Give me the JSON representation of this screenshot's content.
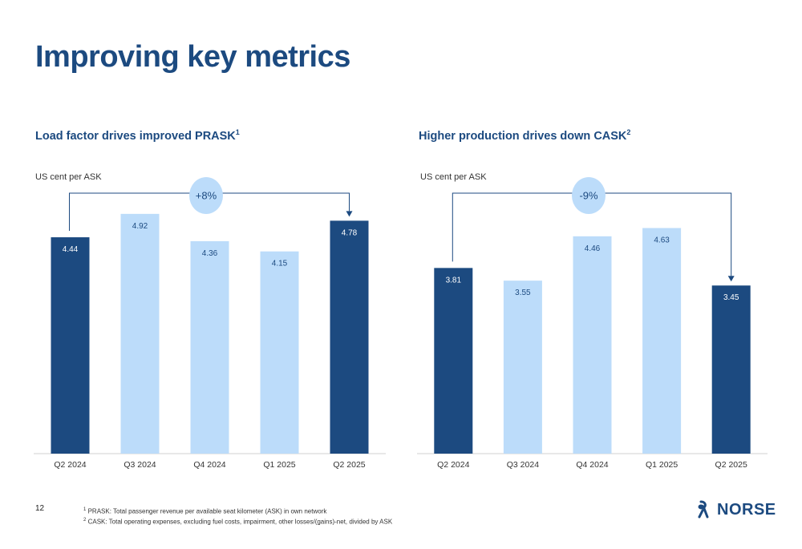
{
  "title": "Improving key metrics",
  "page_number": "12",
  "footnotes": [
    {
      "marker": "1",
      "text": "PRASK: Total passenger revenue per available seat kilometer (ASK) in own network"
    },
    {
      "marker": "2",
      "text": "CASK: Total operating expenses, excluding fuel costs, impairment, other losses/(gains)-net, divided by ASK"
    }
  ],
  "logo": {
    "text": "NORSE"
  },
  "colors": {
    "dark": "#1c4a80",
    "light": "#bcdcfa",
    "bubble": "#bcdcfa"
  },
  "chart_data": [
    {
      "type": "bar",
      "title": "Load factor drives improved PRASK",
      "title_superscript": "1",
      "ylabel": "US cent per ASK",
      "categories": [
        "Q2 2024",
        "Q3 2024",
        "Q4 2024",
        "Q1 2025",
        "Q2 2025"
      ],
      "values": [
        4.44,
        4.92,
        4.36,
        4.15,
        4.78
      ],
      "labels": [
        "4.44",
        "4.92",
        "4.36",
        "4.15",
        "4.78"
      ],
      "highlight": [
        true,
        false,
        false,
        false,
        true
      ],
      "comparison": {
        "label": "+8%",
        "from": "Q2 2024",
        "to": "Q2 2025"
      },
      "grid": false
    },
    {
      "type": "bar",
      "title": "Higher production drives down CASK",
      "title_superscript": "2",
      "ylabel": "US cent per ASK",
      "categories": [
        "Q2 2024",
        "Q3 2024",
        "Q4 2024",
        "Q1 2025",
        "Q2 2025"
      ],
      "values": [
        3.81,
        3.55,
        4.46,
        4.63,
        3.45
      ],
      "labels": [
        "3.81",
        "3.55",
        "4.46",
        "4.63",
        "3.45"
      ],
      "highlight": [
        true,
        false,
        false,
        false,
        true
      ],
      "comparison": {
        "label": "-9%",
        "from": "Q2 2024",
        "to": "Q2 2025"
      },
      "grid": false
    }
  ]
}
